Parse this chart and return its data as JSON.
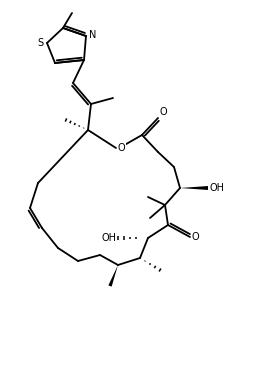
{
  "bg_color": "#ffffff",
  "line_color": "#000000",
  "lw": 1.3,
  "fs": 7.0,
  "figsize": [
    2.64,
    3.8
  ],
  "dpi": 100,
  "atoms": {
    "S": "S",
    "N": "N",
    "O_ester": "O",
    "OH_C4": "OH",
    "OH_C8": "OH",
    "O_ketone": "O",
    "O_ester_carbonyl": "O"
  }
}
